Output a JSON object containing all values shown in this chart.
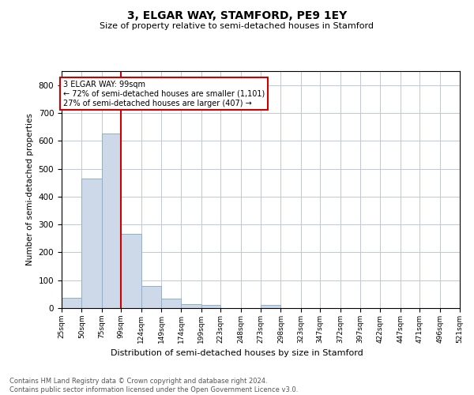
{
  "title": "3, ELGAR WAY, STAMFORD, PE9 1EY",
  "subtitle": "Size of property relative to semi-detached houses in Stamford",
  "xlabel": "Distribution of semi-detached houses by size in Stamford",
  "ylabel": "Number of semi-detached properties",
  "footer_line1": "Contains HM Land Registry data © Crown copyright and database right 2024.",
  "footer_line2": "Contains public sector information licensed under the Open Government Licence v3.0.",
  "property_size": 99,
  "annotation_line1": "3 ELGAR WAY: 99sqm",
  "annotation_line2": "← 72% of semi-detached houses are smaller (1,101)",
  "annotation_line3": "27% of semi-detached houses are larger (407) →",
  "bar_color": "#cdd8e8",
  "bar_edge_color": "#8ab0d0",
  "vline_color": "#cc0000",
  "annotation_box_color": "#cc0000",
  "background_color": "#ffffff",
  "grid_color": "#c0c8d8",
  "bins": [
    25,
    50,
    75,
    99,
    124,
    149,
    174,
    199,
    223,
    248,
    273,
    298,
    323,
    347,
    372,
    397,
    422,
    447,
    471,
    496,
    521
  ],
  "bin_labels": [
    "25sqm",
    "50sqm",
    "75sqm",
    "99sqm",
    "124sqm",
    "149sqm",
    "174sqm",
    "199sqm",
    "223sqm",
    "248sqm",
    "273sqm",
    "298sqm",
    "323sqm",
    "347sqm",
    "372sqm",
    "397sqm",
    "422sqm",
    "447sqm",
    "471sqm",
    "496sqm",
    "521sqm"
  ],
  "counts": [
    37,
    465,
    625,
    265,
    80,
    35,
    15,
    12,
    0,
    0,
    10,
    0,
    0,
    0,
    0,
    0,
    0,
    0,
    0,
    0
  ],
  "ylim": [
    0,
    850
  ],
  "yticks": [
    0,
    100,
    200,
    300,
    400,
    500,
    600,
    700,
    800
  ]
}
